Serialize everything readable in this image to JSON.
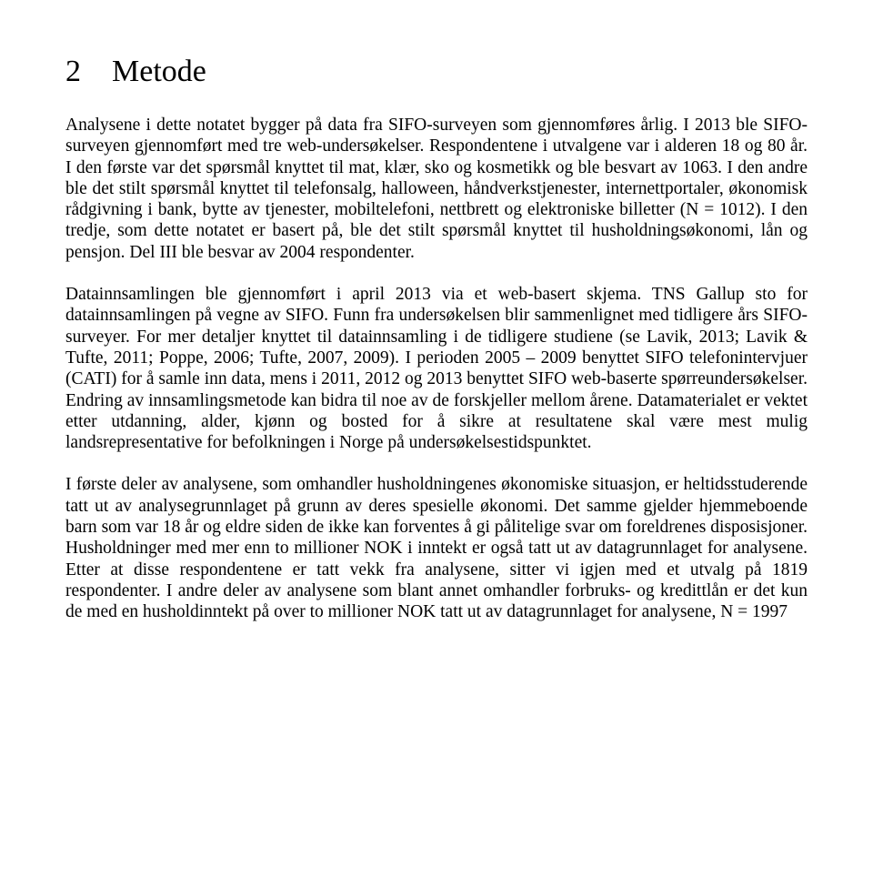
{
  "heading": {
    "number": "2",
    "title": "Metode"
  },
  "paragraphs": {
    "p1": "Analysene i dette notatet bygger på data fra SIFO-surveyen som gjennomføres årlig. I 2013 ble SIFO-surveyen gjennomført med tre web-undersøkelser. Respondentene i utvalgene var i alderen 18 og 80 år. I den første var det spørsmål knyttet til mat, klær, sko og kosmetikk og ble besvart av 1063. I den andre ble det stilt spørsmål knyttet til telefonsalg, halloween, håndverkstjenester, internettportaler, økonomisk rådgivning i bank, bytte av tjenester, mobiltelefoni, nettbrett og elektroniske billetter (N = 1012). I den tredje, som dette notatet er basert på, ble det stilt spørsmål knyttet til husholdningsøkonomi, lån og pensjon. Del III ble besvar av 2004 respondenter.",
    "p2": "Datainnsamlingen ble gjennomført i april 2013 via et web-basert skjema. TNS Gallup sto for datainnsamlingen på vegne av SIFO. Funn fra undersøkelsen blir sammenlignet med tidligere års SIFO-surveyer. For mer detaljer knyttet til datainnsamling i de tidligere studiene (se Lavik, 2013; Lavik & Tufte, 2011; Poppe, 2006; Tufte, 2007, 2009). I perioden 2005 – 2009 benyttet SIFO telefonintervjuer (CATI) for å samle inn data, mens i 2011, 2012 og 2013 benyttet SIFO web-baserte spørreundersøkelser. Endring av innsamlingsmetode kan bidra til noe av de forskjeller mellom årene. Datamaterialet er vektet etter utdanning, alder, kjønn og bosted for å sikre at resultatene skal være mest mulig landsrepresentative for befolkningen i Norge på undersøkelsestidspunktet.",
    "p3": "I første deler av analysene, som omhandler husholdningenes økonomiske situasjon, er heltidsstuderende tatt ut av analysegrunnlaget på grunn av deres spesielle økonomi. Det samme gjelder hjemmeboende barn som var 18 år og eldre siden de ikke kan forventes å gi pålitelige svar om foreldrenes disposisjoner. Husholdninger med mer enn to millioner NOK i inntekt er også tatt ut av datagrunnlaget for analysene. Etter at disse respondentene er tatt vekk fra analysene, sitter vi igjen med et utvalg på 1819 respondenter. I andre deler av analysene som blant annet omhandler forbruks- og kredittlån er det kun de med en husholdinntekt på over to millioner NOK tatt ut av datagrunnlaget for analysene, N = 1997"
  },
  "style": {
    "text_color": "#000000",
    "background_color": "#ffffff",
    "heading_fontsize": 34,
    "body_fontsize": 19.5,
    "font_family": "Times New Roman"
  }
}
